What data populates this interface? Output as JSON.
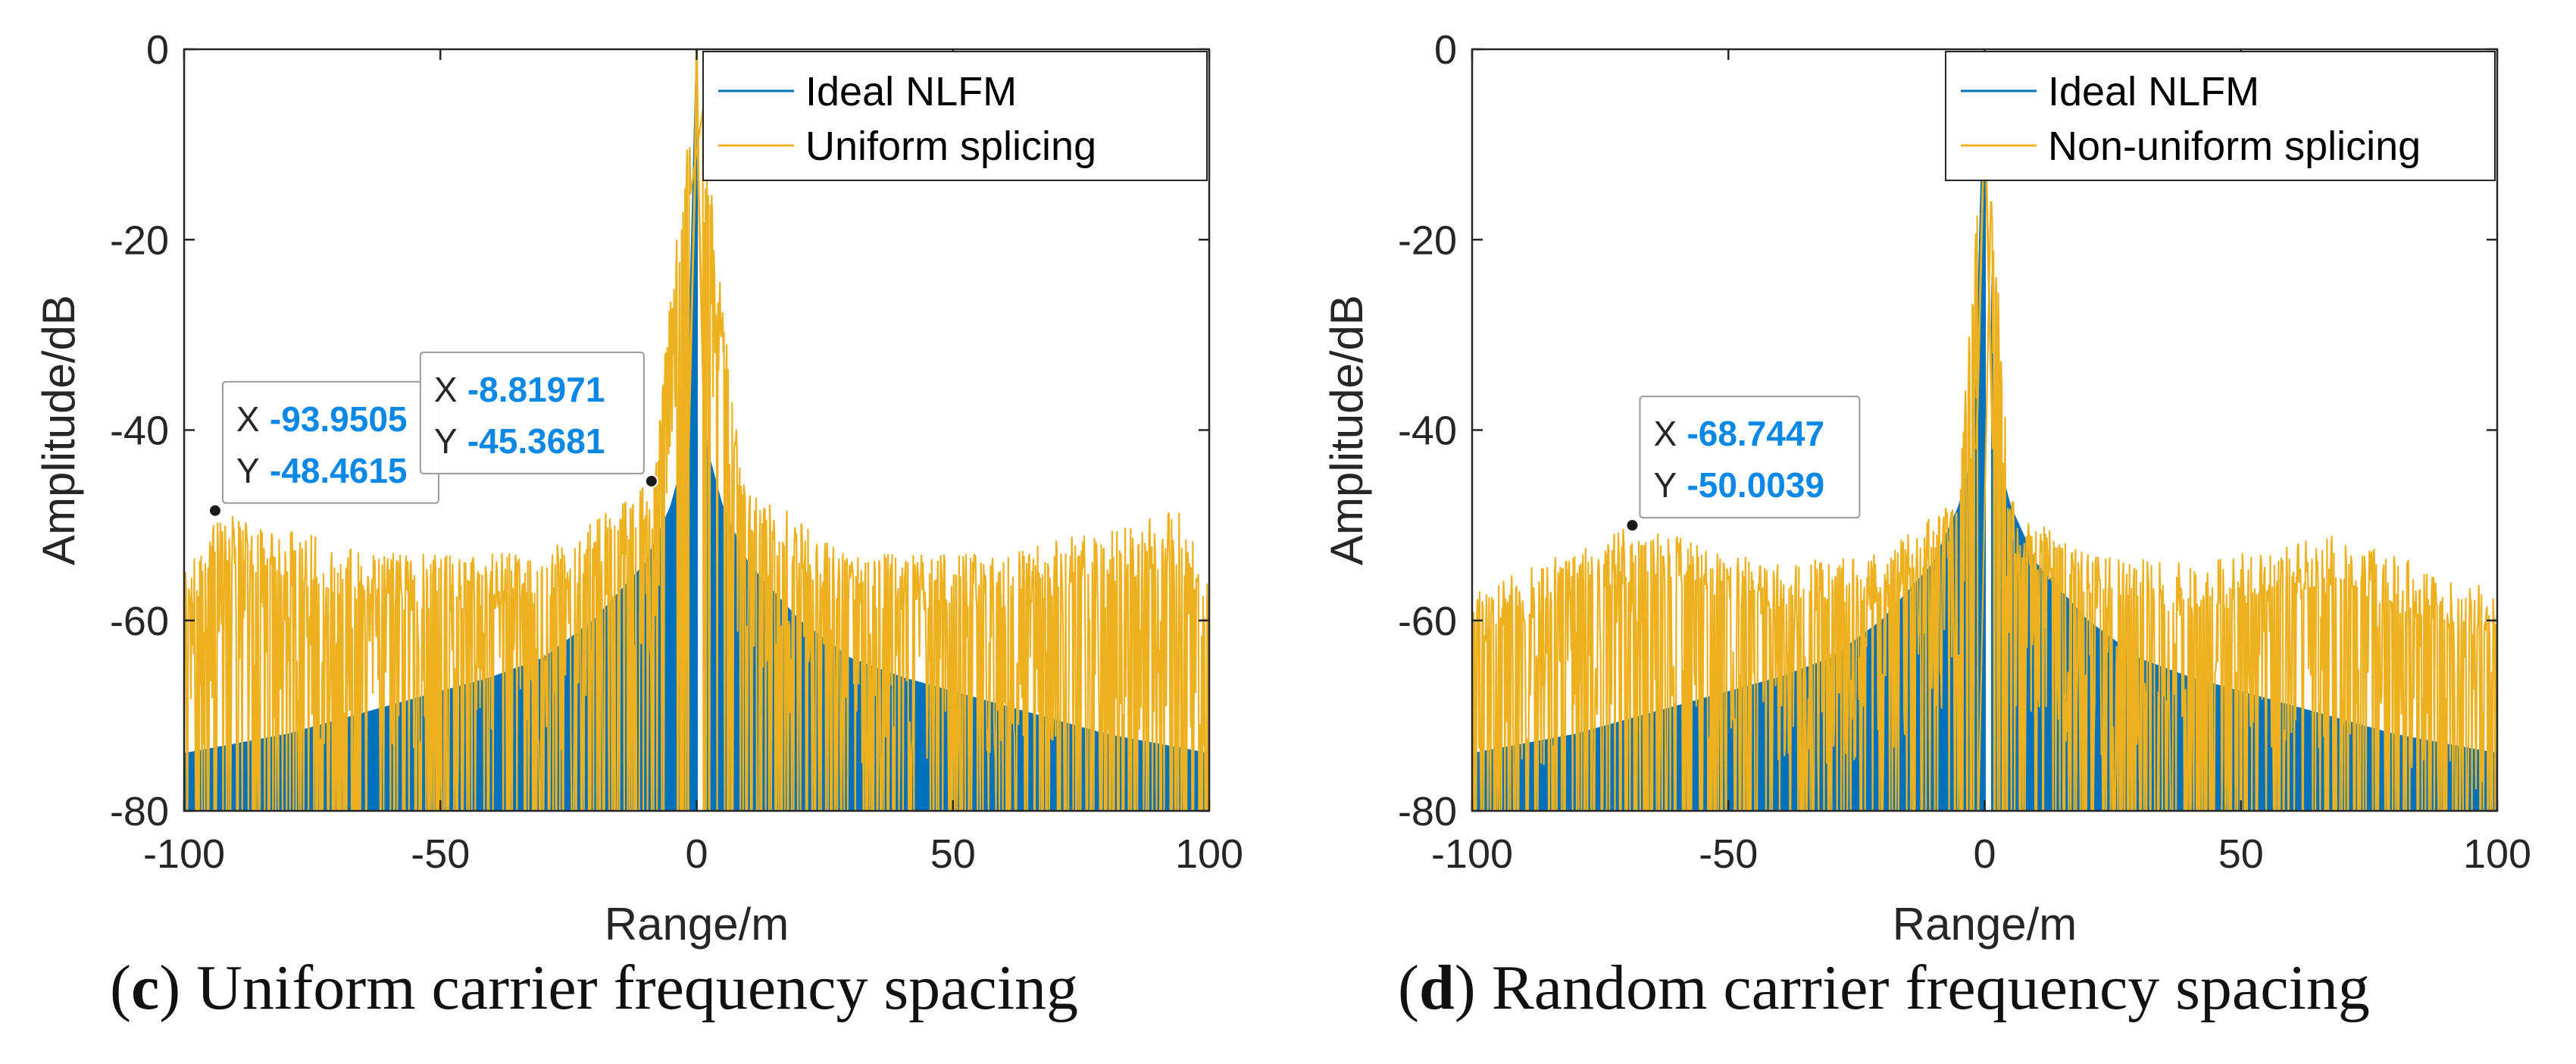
{
  "chart_data": [
    {
      "type": "line",
      "panel": "c",
      "title": "",
      "xlabel": "Range/m",
      "ylabel": "Amplitude/dB",
      "xlim": [
        -100,
        100
      ],
      "ylim": [
        -80,
        0
      ],
      "xticks": [
        -100,
        -50,
        0,
        50,
        100
      ],
      "yticks": [
        0,
        -20,
        -40,
        -60,
        -80
      ],
      "grid": false,
      "legend_position": "top-right",
      "series": [
        {
          "name": "Ideal NLFM",
          "color": "#0072BD",
          "style": "filled",
          "x": [
            -100,
            -80,
            -60,
            -40,
            -30,
            -20,
            -10,
            -5,
            -2,
            0,
            2,
            5,
            10,
            20,
            30,
            40,
            60,
            80,
            100
          ],
          "y": [
            -74,
            -72,
            -69,
            -66,
            -64,
            -60,
            -54,
            -48,
            -42,
            0,
            -42,
            -48,
            -54,
            -60,
            -64,
            -66,
            -69,
            -72,
            -74
          ]
        },
        {
          "name": "Uniform splicing",
          "color": "#EDB120",
          "style": "spiky",
          "x": [
            -100,
            -93.9505,
            -60,
            -30,
            -8.81971,
            0,
            8.81971,
            30,
            60,
            93.9505,
            100
          ],
          "y": [
            -55,
            -48.4615,
            -53,
            -53,
            -45.3681,
            0,
            -45.3681,
            -53,
            -53,
            -48.4615,
            -55
          ]
        }
      ],
      "annotations": [
        {
          "x_label": "X",
          "y_label": "Y",
          "x_value": "-93.9505",
          "y_value": "-48.4615",
          "x": -93.9505,
          "y": -48.4615
        },
        {
          "x_label": "X",
          "y_label": "Y",
          "x_value": "-8.81971",
          "y_value": "-45.3681",
          "x": -8.81971,
          "y": -45.3681
        }
      ]
    },
    {
      "type": "line",
      "panel": "d",
      "title": "",
      "xlabel": "Range/m",
      "ylabel": "Amplitude/dB",
      "xlim": [
        -100,
        100
      ],
      "ylim": [
        -80,
        0
      ],
      "xticks": [
        -100,
        -50,
        0,
        50,
        100
      ],
      "yticks": [
        0,
        -20,
        -40,
        -60,
        -80
      ],
      "grid": false,
      "legend_position": "top-right",
      "series": [
        {
          "name": "Ideal NLFM",
          "color": "#0072BD",
          "style": "filled",
          "x": [
            -100,
            -80,
            -60,
            -40,
            -30,
            -20,
            -10,
            -5,
            -2,
            0,
            2,
            5,
            10,
            20,
            30,
            40,
            60,
            80,
            100
          ],
          "y": [
            -74,
            -72,
            -69,
            -66,
            -64,
            -60,
            -54,
            -48,
            -42,
            0,
            -42,
            -48,
            -54,
            -60,
            -64,
            -66,
            -69,
            -72,
            -74
          ]
        },
        {
          "name": "Non-uniform splicing",
          "color": "#EDB120",
          "style": "spiky",
          "x": [
            -100,
            -68.7447,
            -40,
            -20,
            -5,
            0,
            5,
            20,
            40,
            68.7447,
            100
          ],
          "y": [
            -57,
            -50.0039,
            -54,
            -53,
            -47,
            0,
            -47,
            -53,
            -54,
            -51,
            -57
          ]
        }
      ],
      "annotations": [
        {
          "x_label": "X",
          "y_label": "Y",
          "x_value": "-68.7447",
          "y_value": "-50.0039",
          "x": -68.7447,
          "y": -50.0039
        }
      ]
    }
  ],
  "captions": [
    {
      "letter": "c",
      "open": "(",
      "close": ")",
      "text": " Uniform carrier frequency spacing"
    },
    {
      "letter": "d",
      "open": "(",
      "close": ")",
      "text": " Random carrier frequency spacing"
    }
  ]
}
